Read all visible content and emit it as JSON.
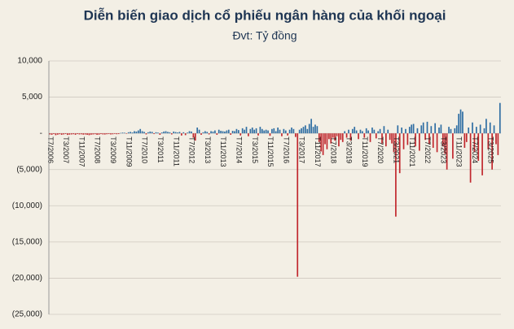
{
  "chart_data": {
    "type": "bar",
    "title": "Diễn biến giao dịch cổ phiếu ngân hàng của khối ngoại",
    "subtitle": "Đvt: Tỷ đồng",
    "categories": [
      "T7/2006",
      null,
      null,
      null,
      null,
      null,
      null,
      null,
      "T3/2007",
      null,
      null,
      null,
      null,
      null,
      null,
      null,
      "T11/2007",
      null,
      null,
      null,
      null,
      null,
      null,
      null,
      "T7/2008",
      null,
      null,
      null,
      null,
      null,
      null,
      null,
      "T3/2009",
      null,
      null,
      null,
      null,
      null,
      null,
      null,
      "T11/2009",
      null,
      null,
      null,
      null,
      null,
      null,
      null,
      "T7/2010",
      null,
      null,
      null,
      null,
      null,
      null,
      null,
      "T3/2011",
      null,
      null,
      null,
      null,
      null,
      null,
      null,
      "T11/2011",
      null,
      null,
      null,
      null,
      null,
      null,
      null,
      "T7/2012",
      null,
      null,
      null,
      null,
      null,
      null,
      null,
      "T3/2013",
      null,
      null,
      null,
      null,
      null,
      null,
      null,
      "T11/2013",
      null,
      null,
      null,
      null,
      null,
      null,
      null,
      "T7/2014",
      null,
      null,
      null,
      null,
      null,
      null,
      null,
      "T3/2015",
      null,
      null,
      null,
      null,
      null,
      null,
      null,
      "T11/2015",
      null,
      null,
      null,
      null,
      null,
      null,
      null,
      "T7/2016",
      null,
      null,
      null,
      null,
      null,
      null,
      null,
      "T3/2017",
      null,
      null,
      null,
      null,
      null,
      null,
      null,
      "T11/2017",
      null,
      null,
      null,
      null,
      null,
      null,
      null,
      "T7/2018",
      null,
      null,
      null,
      null,
      null,
      null,
      null,
      "T3/2019",
      null,
      null,
      null,
      null,
      null,
      null,
      null,
      "T11/2019",
      null,
      null,
      null,
      null,
      null,
      null,
      null,
      "T7/2020",
      null,
      null,
      null,
      null,
      null,
      null,
      null,
      "T3/2021",
      null,
      null,
      null,
      null,
      null,
      null,
      null,
      "T11/2021",
      null,
      null,
      null,
      null,
      null,
      null,
      null,
      "T7/2022",
      null,
      null,
      null,
      null,
      null,
      null,
      null,
      "T3/2023",
      null,
      null,
      null,
      null,
      null,
      null,
      null,
      "T11/2023",
      null,
      null,
      null,
      null,
      null,
      null,
      null,
      "T7/2024",
      null,
      null,
      null,
      null,
      null,
      null,
      null,
      "T3/2025",
      null,
      null,
      null,
      null,
      null
    ],
    "values": [
      -150,
      -200,
      -100,
      -250,
      -180,
      -120,
      -200,
      -150,
      -100,
      -220,
      -180,
      -150,
      -120,
      -200,
      -100,
      -150,
      -130,
      -180,
      -160,
      -200,
      -250,
      -180,
      -150,
      -120,
      -200,
      -180,
      -100,
      -150,
      -160,
      -120,
      -100,
      -150,
      -130,
      -80,
      -120,
      -100,
      50,
      100,
      80,
      -60,
      150,
      200,
      120,
      300,
      250,
      400,
      600,
      300,
      200,
      -150,
      150,
      250,
      200,
      -100,
      150,
      100,
      -200,
      120,
      250,
      300,
      200,
      150,
      -150,
      250,
      180,
      120,
      200,
      -300,
      150,
      -250,
      100,
      300,
      250,
      -600,
      -1000,
      800,
      500,
      -200,
      150,
      300,
      200,
      -150,
      300,
      250,
      400,
      -200,
      500,
      350,
      300,
      250,
      400,
      500,
      -200,
      350,
      300,
      600,
      450,
      -300,
      700,
      500,
      900,
      -400,
      600,
      800,
      500,
      700,
      -300,
      900,
      600,
      400,
      500,
      400,
      -350,
      600,
      700,
      300,
      800,
      500,
      -400,
      600,
      400,
      -300,
      500,
      800,
      600,
      -500,
      -19800,
      500,
      700,
      900,
      1100,
      600,
      1300,
      2000,
      900,
      1200,
      1000,
      -1200,
      -2500,
      -3000,
      -1500,
      -2200,
      -800,
      -1400,
      -600,
      -1000,
      -400,
      -1800,
      -900,
      -1200,
      300,
      -600,
      500,
      -1000,
      600,
      900,
      400,
      -800,
      500,
      300,
      -600,
      700,
      400,
      -1200,
      800,
      500,
      -700,
      300,
      600,
      -1400,
      1000,
      -1800,
      500,
      -900,
      -1400,
      -2600,
      -11500,
      1100,
      -5500,
      800,
      -2200,
      600,
      -1600,
      900,
      1200,
      1300,
      -1800,
      700,
      -2400,
      1100,
      1500,
      -900,
      1600,
      -1500,
      1000,
      -2000,
      1400,
      -2600,
      800,
      1200,
      -1800,
      -2800,
      -5000,
      900,
      600,
      -3500,
      700,
      1100,
      2700,
      3300,
      3000,
      -2000,
      -1200,
      800,
      -6800,
      1500,
      -2600,
      900,
      -3800,
      1200,
      -5800,
      700,
      2000,
      -2200,
      1500,
      -5000,
      1100,
      -1500,
      -3000,
      4200
    ],
    "positive_color": "#2f6ea3",
    "negative_color": "#c1272d",
    "ylim": [
      -25000,
      10000
    ],
    "yticks": [
      {
        "value": 10000,
        "label": "10,000"
      },
      {
        "value": 5000,
        "label": "5,000"
      },
      {
        "value": 0,
        "label": "-"
      },
      {
        "value": -5000,
        "label": "(5,000)"
      },
      {
        "value": -10000,
        "label": "(10,000)"
      },
      {
        "value": -15000,
        "label": "(15,000)"
      },
      {
        "value": -20000,
        "label": "(20,000)"
      },
      {
        "value": -25000,
        "label": "(25,000)"
      }
    ],
    "grid": true
  }
}
